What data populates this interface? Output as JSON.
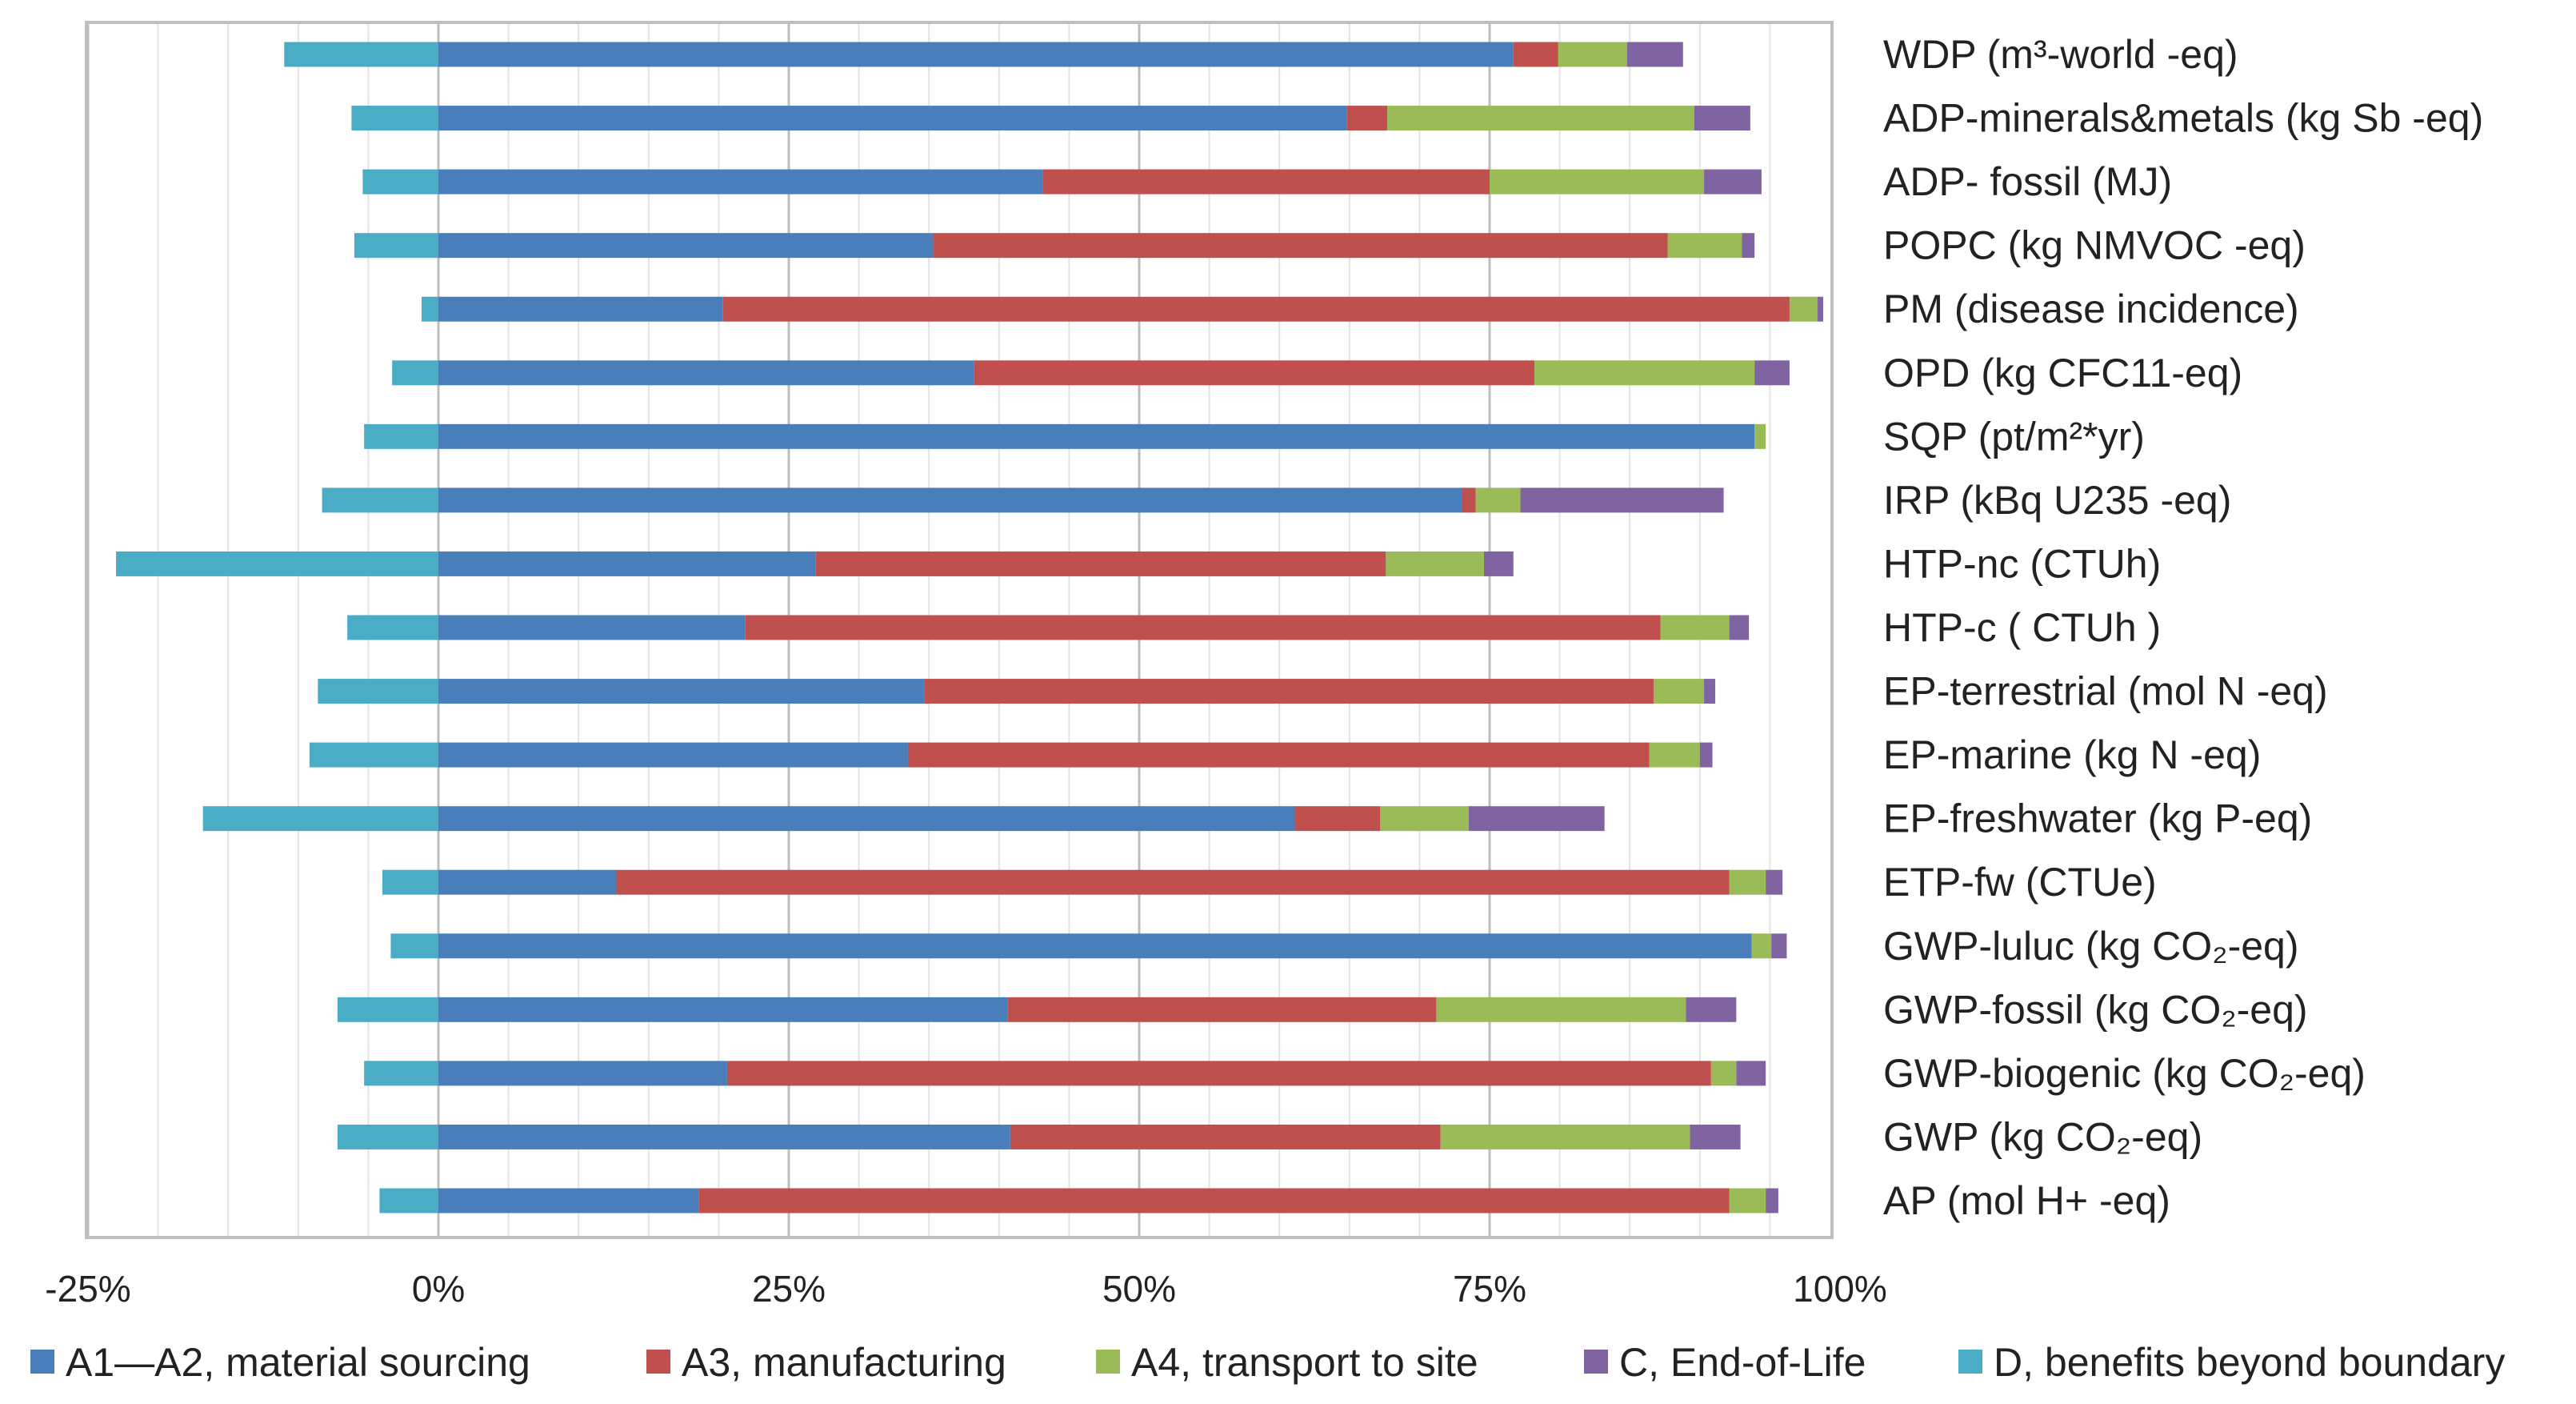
{
  "chart_data": {
    "type": "bar",
    "orientation": "horizontal",
    "stacked": true,
    "title": "",
    "xlabel": "",
    "ylabel": "",
    "xlim": [
      -25,
      100
    ],
    "xticks": [
      -25,
      0,
      25,
      50,
      75,
      100
    ],
    "xtick_labels": [
      "-25%",
      "0%",
      "25%",
      "50%",
      "75%",
      "100%"
    ],
    "grid": true,
    "legend_position": "bottom",
    "categories": [
      "WDP (m³-world -eq)",
      "ADP-minerals&metals (kg Sb -eq)",
      "ADP- fossil (MJ)",
      "POPC (kg NMVOC -eq)",
      "PM (disease incidence)",
      "OPD (kg CFC11-eq)",
      "SQP (pt/m²*yr)",
      "IRP (kBq U235 -eq)",
      "HTP-nc (CTUh)",
      "HTP-c ( CTUh )",
      "EP-terrestrial (mol N -eq)",
      "EP-marine (kg N -eq)",
      "EP-freshwater (kg P-eq)",
      "ETP-fw (CTUe)",
      "GWP-luluc (kg CO₂-eq)",
      "GWP-fossil (kg CO₂-eq)",
      "GWP-biogenic (kg CO₂-eq)",
      "GWP (kg CO₂-eq)",
      "AP (mol H+ -eq)"
    ],
    "series": [
      {
        "name": "A1—A2, material sourcing",
        "color": "#4a7ebb",
        "values": [
          76.7,
          64.8,
          43.1,
          35.3,
          20.3,
          38.2,
          93.9,
          73.0,
          26.9,
          21.9,
          34.7,
          33.5,
          61.1,
          12.7,
          93.7,
          40.6,
          20.6,
          40.8,
          18.6
        ]
      },
      {
        "name": "A3, manufacturing",
        "color": "#c0504d",
        "values": [
          3.2,
          2.9,
          31.9,
          52.4,
          76.1,
          40.0,
          0,
          1.0,
          40.7,
          65.3,
          52.0,
          52.9,
          6.1,
          79.4,
          0,
          30.6,
          70.2,
          30.7,
          73.5
        ]
      },
      {
        "name": "A4, transport to site",
        "color": "#9bbb59",
        "values": [
          4.9,
          21.9,
          15.3,
          5.3,
          2.0,
          15.7,
          0.8,
          3.2,
          7.0,
          4.9,
          3.6,
          3.6,
          6.3,
          2.6,
          1.4,
          17.8,
          1.8,
          17.8,
          2.6
        ]
      },
      {
        "name": "C, End-of-Life",
        "color": "#8064a2",
        "values": [
          4.0,
          4.0,
          4.1,
          0.9,
          0.4,
          2.5,
          0,
          14.5,
          2.1,
          1.4,
          0.8,
          0.9,
          9.7,
          1.2,
          1.1,
          3.6,
          2.1,
          3.6,
          0.9
        ]
      },
      {
        "name": "D, benefits beyond boundary",
        "color": "#4bacc6",
        "values": [
          -11.0,
          -6.2,
          -5.4,
          -6.0,
          -1.2,
          -3.3,
          -5.3,
          -8.3,
          -23.0,
          -6.5,
          -8.6,
          -9.2,
          -16.8,
          -4.0,
          -3.4,
          -7.2,
          -5.3,
          -7.2,
          -4.2
        ]
      }
    ]
  }
}
